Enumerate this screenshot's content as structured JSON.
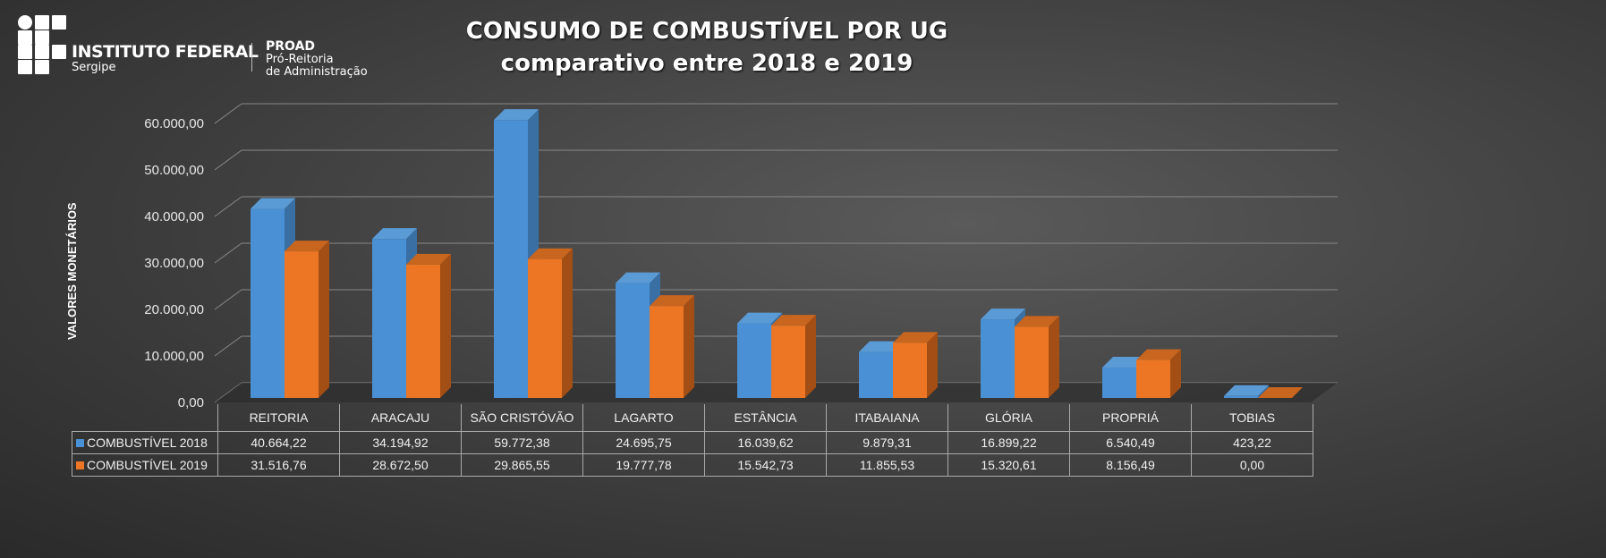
{
  "header": {
    "institution": "INSTITUTO FEDERAL",
    "campus": "Sergipe",
    "dept": "PROAD",
    "dept_line1": "Pró-Reitoria",
    "dept_line2": "de Administração"
  },
  "chart_data": {
    "type": "bar",
    "title": "CONSUMO DE COMBUSTÍVEL POR UG",
    "subtitle": "comparativo entre 2018 e 2019",
    "ylabel": "VALORES MONETÁRIOS",
    "xlabel": "",
    "ylim": [
      0,
      60000
    ],
    "yticks": [
      "0,00",
      "10.000,00",
      "20.000,00",
      "30.000,00",
      "40.000,00",
      "50.000,00",
      "60.000,00"
    ],
    "categories": [
      "REITORIA",
      "ARACAJU",
      "SÃO CRISTÓVÃO",
      "LAGARTO",
      "ESTÂNCIA",
      "ITABAIANA",
      "GLÓRIA",
      "PROPRIÁ",
      "TOBIAS"
    ],
    "series": [
      {
        "name": "COMBUSTÍVEL 2018",
        "color": "#4a90d4",
        "values": [
          40664.22,
          34194.92,
          59772.38,
          24695.75,
          16039.62,
          9879.31,
          16899.22,
          6540.49,
          423.22
        ],
        "labels": [
          "40.664,22",
          "34.194,92",
          "59.772,38",
          "24.695,75",
          "16.039,62",
          "9.879,31",
          "16.899,22",
          "6.540,49",
          "423,22"
        ]
      },
      {
        "name": "COMBUSTÍVEL 2019",
        "color": "#ed7624",
        "values": [
          31516.76,
          28672.5,
          29865.55,
          19777.78,
          15542.73,
          11855.53,
          15320.61,
          8156.49,
          0
        ],
        "labels": [
          "31.516,76",
          "28.672,50",
          "29.865,55",
          "19.777,78",
          "15.542,73",
          "11.855,53",
          "15.320,61",
          "8.156,49",
          "0,00"
        ]
      }
    ],
    "grid": true,
    "legend": "table"
  }
}
